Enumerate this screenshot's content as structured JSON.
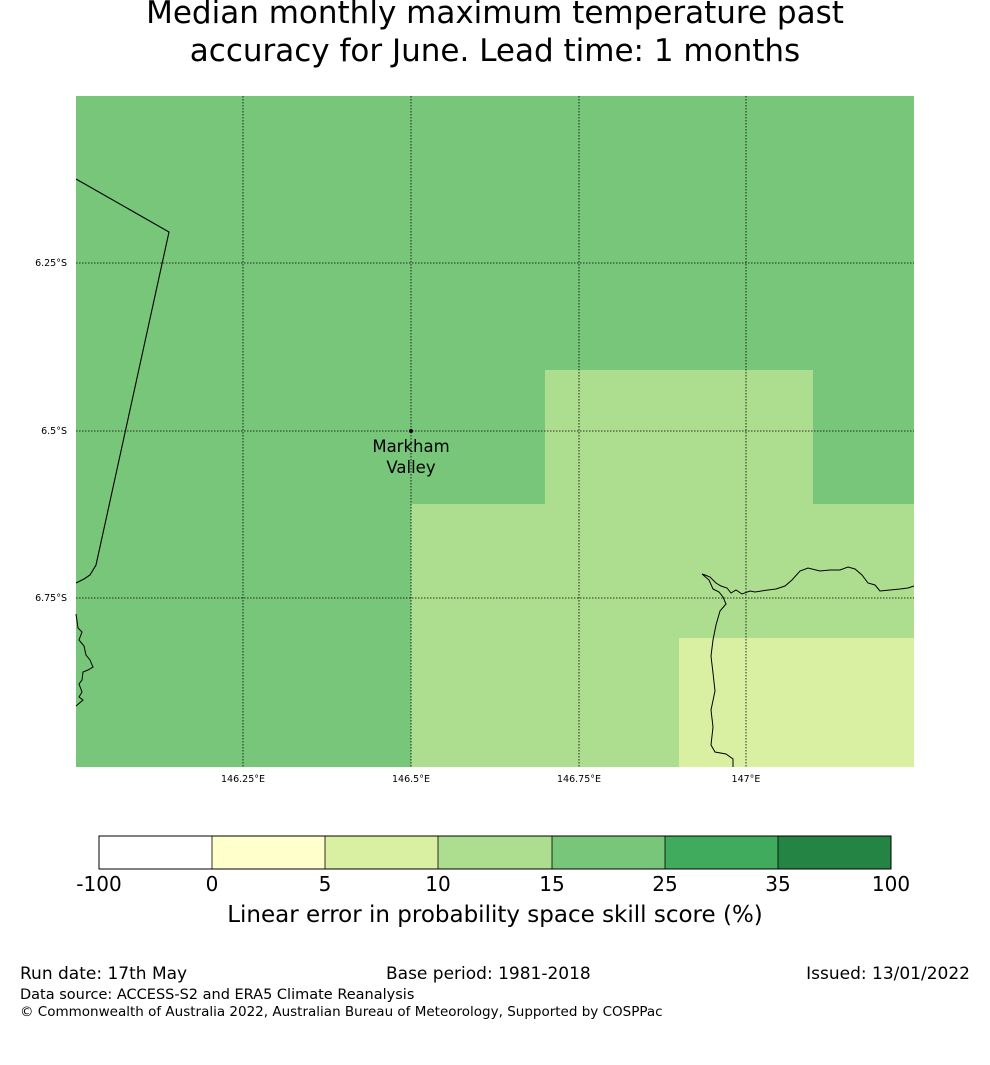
{
  "title": {
    "line1": "Median monthly maximum temperature past",
    "line2": "accuracy for June. Lead time: 1 months"
  },
  "map": {
    "lon_labels": [
      "146.25°E",
      "146.5°E",
      "146.75°E",
      "147°E"
    ],
    "lat_labels": [
      "6.25°S",
      "6.5°S",
      "6.75°S"
    ],
    "place": {
      "line1": "Markham",
      "line2": "Valley"
    },
    "colors": {
      "c0": "#ffffcc",
      "c5": "#d9f0a3",
      "c10": "#addd8e",
      "c15": "#78c679",
      "c25": "#41ab5d",
      "c35": "#238443"
    }
  },
  "colorbar": {
    "ticks": [
      "-100",
      "0",
      "5",
      "10",
      "15",
      "25",
      "35",
      "100"
    ],
    "colors": [
      "#ffffff",
      "#ffffcc",
      "#d9f0a3",
      "#addd8e",
      "#78c679",
      "#41ab5d",
      "#238443"
    ],
    "label": "Linear error in probability space skill score (%)"
  },
  "footer": {
    "run_date": "Run date: 17th May",
    "base_period": "Base period: 1981-2018",
    "issued": "Issued: 13/01/2022",
    "data_source": "Data source: ACCESS-S2 and ERA5 Climate Reanalysis",
    "copyright": "© Commonwealth of Australia 2022, Australian Bureau of Meteorology, Supported by COSPPac"
  }
}
